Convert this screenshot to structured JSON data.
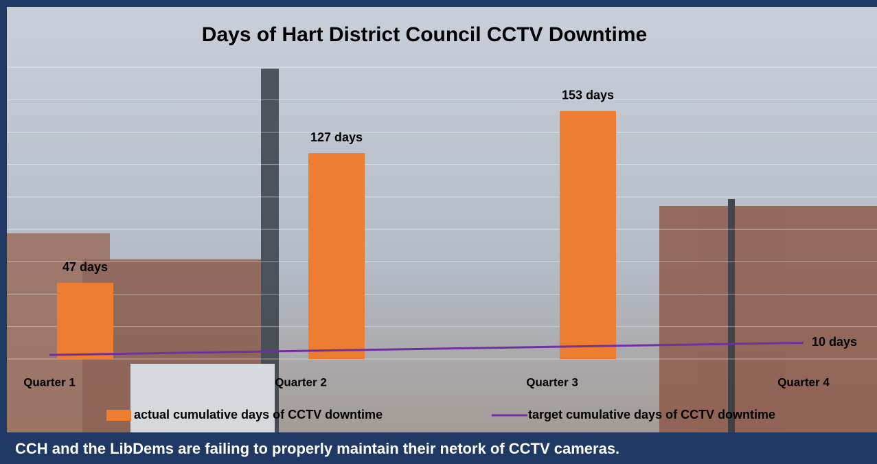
{
  "chart_data": {
    "type": "bar",
    "title": "Days of Hart District Council CCTV Downtime",
    "categories": [
      "Quarter 1",
      "Quarter 2",
      "Quarter 3",
      "Quarter 4"
    ],
    "series": [
      {
        "name": "actual cumulative days of CCTV downtime",
        "type": "bar",
        "color": "#ed7d31",
        "values": [
          47,
          127,
          153,
          null
        ],
        "value_labels": [
          "47 days",
          "127 days",
          "153 days",
          null
        ]
      },
      {
        "name": "target cumulative days of CCTV downtime",
        "type": "line",
        "color": "#7030a0",
        "values": [
          2.5,
          5,
          7.5,
          10
        ],
        "value_labels": [
          null,
          null,
          null,
          "10 days"
        ]
      }
    ],
    "ylim": [
      0,
      180
    ],
    "yticks": [
      0,
      20,
      40,
      60,
      80,
      100,
      120,
      140,
      160,
      180
    ],
    "grid": true
  },
  "caption": "CCH and the LibDems are failing to properly maintain their netork of CCTV cameras."
}
